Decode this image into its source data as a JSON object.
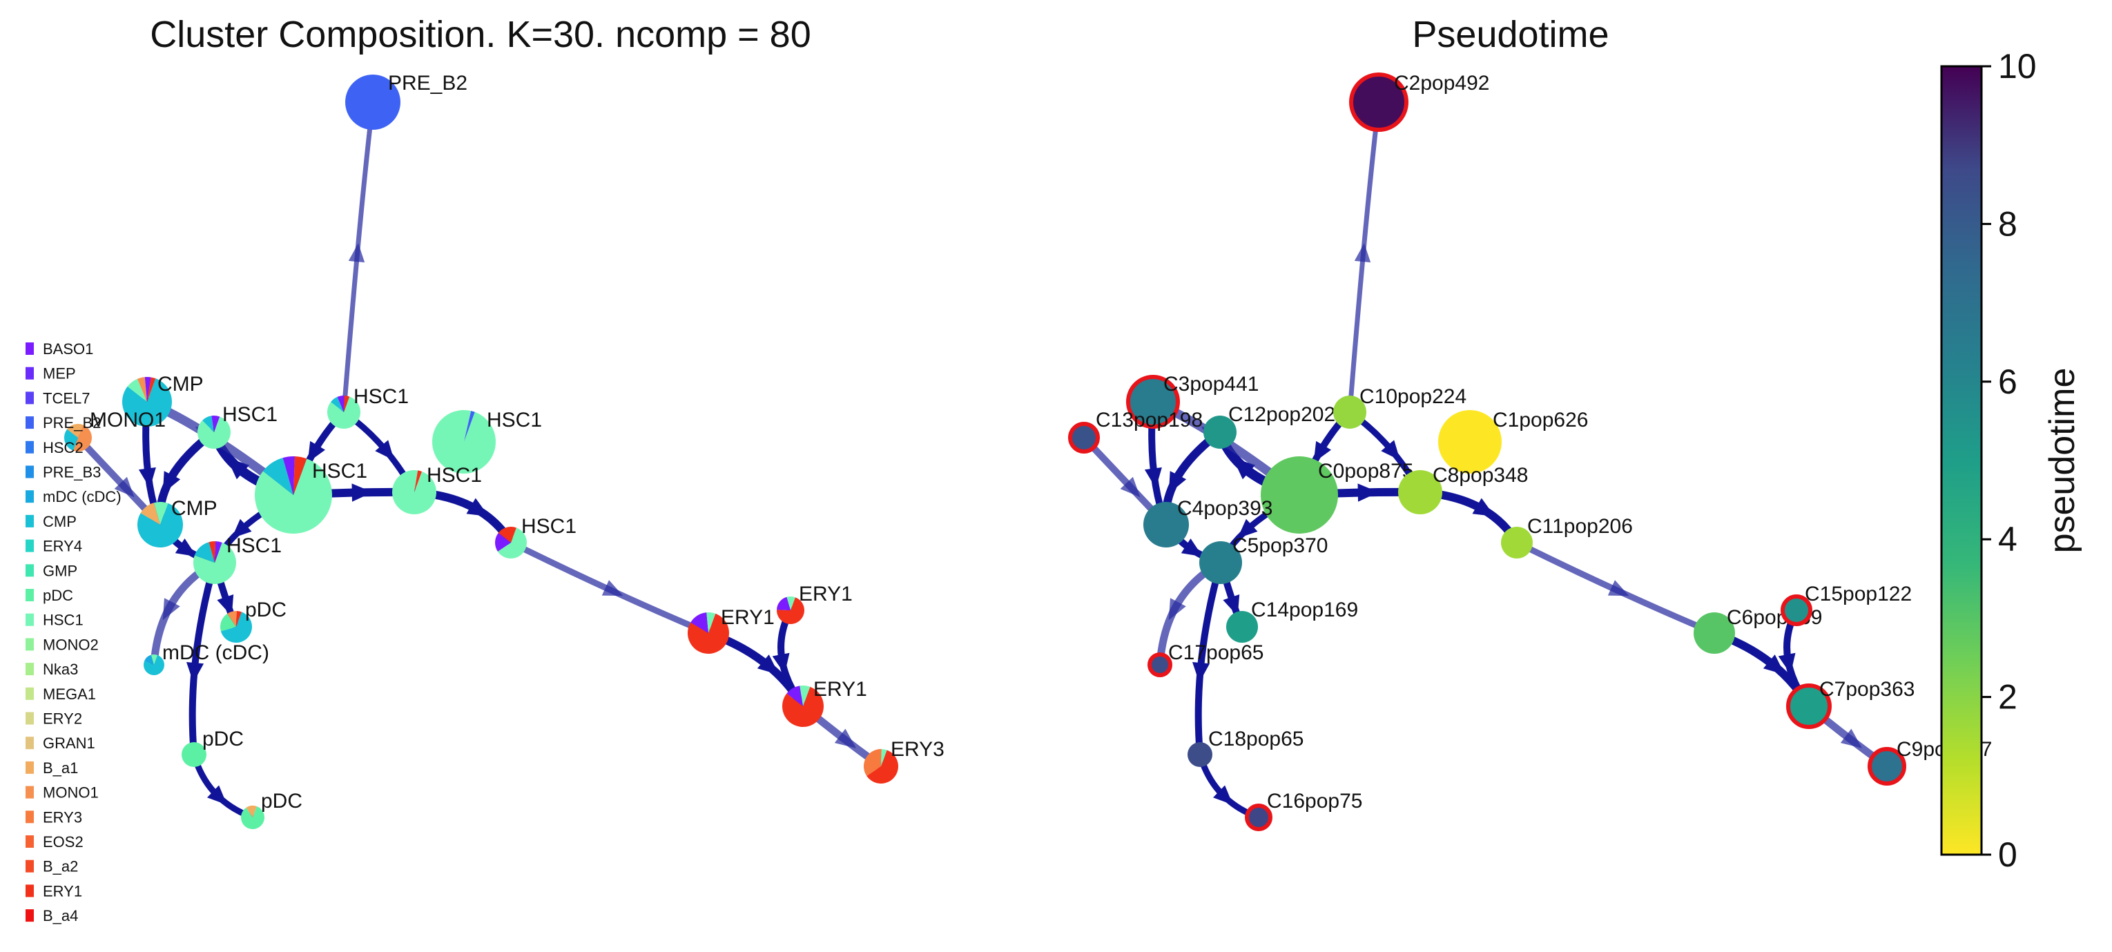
{
  "left_panel": {
    "title": "Cluster Composition. K=30. ncomp = 80",
    "legend": [
      {
        "label": "BASO1",
        "color": "#7b1bff"
      },
      {
        "label": "MEP",
        "color": "#6a2cfb"
      },
      {
        "label": "TCEL7",
        "color": "#5a40f6"
      },
      {
        "label": "PRE_B2",
        "color": "#3e63f4"
      },
      {
        "label": "HSC2",
        "color": "#2f79f0"
      },
      {
        "label": "PRE_B3",
        "color": "#1f8fe8"
      },
      {
        "label": "mDC (cDC)",
        "color": "#17a9df"
      },
      {
        "label": "CMP",
        "color": "#19c0d6"
      },
      {
        "label": "ERY4",
        "color": "#25d6c6"
      },
      {
        "label": "GMP",
        "color": "#3fe6b0"
      },
      {
        "label": "pDC",
        "color": "#5cf0a4"
      },
      {
        "label": "HSC1",
        "color": "#76f6b6"
      },
      {
        "label": "MONO2",
        "color": "#8ff29a"
      },
      {
        "label": "Nka3",
        "color": "#a8ee8c"
      },
      {
        "label": "MEGA1",
        "color": "#c3e68a"
      },
      {
        "label": "ERY2",
        "color": "#d6d789"
      },
      {
        "label": "GRAN1",
        "color": "#e3c47f"
      },
      {
        "label": "B_a1",
        "color": "#f2ac60"
      },
      {
        "label": "MONO1",
        "color": "#f69050"
      },
      {
        "label": "ERY3",
        "color": "#f77a3f"
      },
      {
        "label": "EOS2",
        "color": "#f66232"
      },
      {
        "label": "B_a2",
        "color": "#f44a26"
      },
      {
        "label": "ERY1",
        "color": "#f2311a"
      },
      {
        "label": "B_a4",
        "color": "#f01212"
      }
    ],
    "nodes": [
      {
        "id": "n2",
        "label": "PRE_B2",
        "slices": [
          [
            "#3e63f4",
            1
          ]
        ]
      },
      {
        "id": "n3",
        "label": "CMP",
        "slices": [
          [
            "#19c0d6",
            0.8
          ],
          [
            "#76f6b6",
            0.08
          ],
          [
            "#f69050",
            0.05
          ],
          [
            "#7b1bff",
            0.04
          ],
          [
            "#f2311a",
            0.03
          ]
        ]
      },
      {
        "id": "n13",
        "label": "MONO1",
        "slices": [
          [
            "#f69050",
            0.5
          ],
          [
            "#19c0d6",
            0.3
          ],
          [
            "#f2ac60",
            0.2
          ]
        ]
      },
      {
        "id": "n12",
        "label": "HSC1",
        "slices": [
          [
            "#76f6b6",
            0.82
          ],
          [
            "#19c0d6",
            0.1
          ],
          [
            "#7b1bff",
            0.08
          ]
        ]
      },
      {
        "id": "n10",
        "label": "HSC1",
        "slices": [
          [
            "#76f6b6",
            0.8
          ],
          [
            "#19c0d6",
            0.08
          ],
          [
            "#7b1bff",
            0.07
          ],
          [
            "#f2311a",
            0.05
          ]
        ]
      },
      {
        "id": "n1",
        "label": "HSC1",
        "slices": [
          [
            "#76f6b6",
            0.98
          ],
          [
            "#3e63f4",
            0.02
          ]
        ]
      },
      {
        "id": "n0",
        "label": "HSC1",
        "slices": [
          [
            "#76f6b6",
            0.8
          ],
          [
            "#19c0d6",
            0.1
          ],
          [
            "#7b1bff",
            0.05
          ],
          [
            "#f2311a",
            0.05
          ]
        ]
      },
      {
        "id": "n8",
        "label": "HSC1",
        "slices": [
          [
            "#76f6b6",
            0.97
          ],
          [
            "#f2311a",
            0.03
          ]
        ]
      },
      {
        "id": "n4",
        "label": "CMP",
        "slices": [
          [
            "#19c0d6",
            0.78
          ],
          [
            "#f2ac60",
            0.12
          ],
          [
            "#76f6b6",
            0.1
          ]
        ]
      },
      {
        "id": "n5",
        "label": "HSC1",
        "slices": [
          [
            "#76f6b6",
            0.75
          ],
          [
            "#19c0d6",
            0.15
          ],
          [
            "#f2311a",
            0.05
          ],
          [
            "#7b1bff",
            0.05
          ]
        ]
      },
      {
        "id": "n11",
        "label": "HSC1",
        "slices": [
          [
            "#76f6b6",
            0.6
          ],
          [
            "#7b1bff",
            0.2
          ],
          [
            "#f2311a",
            0.2
          ]
        ]
      },
      {
        "id": "n14",
        "label": "pDC",
        "slices": [
          [
            "#19c0d6",
            0.65
          ],
          [
            "#5cf0a4",
            0.2
          ],
          [
            "#f69050",
            0.1
          ],
          [
            "#f2311a",
            0.05
          ]
        ]
      },
      {
        "id": "n17",
        "label": "mDC (cDC)",
        "slices": [
          [
            "#19c0d6",
            0.75
          ],
          [
            "#17a9df",
            0.15
          ],
          [
            "#76f6b6",
            0.1
          ]
        ]
      },
      {
        "id": "n18",
        "label": "pDC",
        "slices": [
          [
            "#5cf0a4",
            1
          ]
        ]
      },
      {
        "id": "n16",
        "label": "pDC",
        "slices": [
          [
            "#5cf0a4",
            0.85
          ],
          [
            "#f2ac60",
            0.15
          ]
        ]
      },
      {
        "id": "n6",
        "label": "ERY1",
        "slices": [
          [
            "#f2311a",
            0.78
          ],
          [
            "#7b1bff",
            0.15
          ],
          [
            "#76f6b6",
            0.07
          ]
        ]
      },
      {
        "id": "n15",
        "label": "ERY1",
        "slices": [
          [
            "#f2311a",
            0.7
          ],
          [
            "#7b1bff",
            0.2
          ],
          [
            "#76f6b6",
            0.1
          ]
        ]
      },
      {
        "id": "n7",
        "label": "ERY1",
        "slices": [
          [
            "#f2311a",
            0.8
          ],
          [
            "#7b1bff",
            0.12
          ],
          [
            "#76f6b6",
            0.08
          ]
        ]
      },
      {
        "id": "n9",
        "label": "ERY3",
        "slices": [
          [
            "#f2311a",
            0.6
          ],
          [
            "#f77a3f",
            0.35
          ],
          [
            "#76f6b6",
            0.05
          ]
        ]
      }
    ]
  },
  "right_panel": {
    "title": "Pseudotime",
    "colorbar": {
      "label": "pseudotime",
      "min": 0,
      "max": 10,
      "ticks": [
        "0",
        "2",
        "4",
        "6",
        "8",
        "10"
      ]
    },
    "nodes": [
      {
        "id": "n2",
        "label": "C2pop492",
        "pseudotime": 9.8,
        "terminal": true
      },
      {
        "id": "n3",
        "label": "C3pop441",
        "pseudotime": 6.6,
        "terminal": true
      },
      {
        "id": "n13",
        "label": "C13pop198",
        "pseudotime": 8.4,
        "terminal": true
      },
      {
        "id": "n12",
        "label": "C12pop202",
        "pseudotime": 5.3,
        "terminal": false
      },
      {
        "id": "n10",
        "label": "C10pop224",
        "pseudotime": 1.8,
        "terminal": false
      },
      {
        "id": "n1",
        "label": "C1pop626",
        "pseudotime": 0.0,
        "terminal": false
      },
      {
        "id": "n0",
        "label": "C0pop875",
        "pseudotime": 2.8,
        "terminal": false
      },
      {
        "id": "n8",
        "label": "C8pop348",
        "pseudotime": 1.6,
        "terminal": false
      },
      {
        "id": "n4",
        "label": "C4pop393",
        "pseudotime": 6.6,
        "terminal": false
      },
      {
        "id": "n5",
        "label": "C5pop370",
        "pseudotime": 6.4,
        "terminal": false
      },
      {
        "id": "n11",
        "label": "C11pop206",
        "pseudotime": 1.6,
        "terminal": false
      },
      {
        "id": "n14",
        "label": "C14pop169",
        "pseudotime": 5.0,
        "terminal": false
      },
      {
        "id": "n17",
        "label": "C17pop65",
        "pseudotime": 8.6,
        "terminal": true
      },
      {
        "id": "n18",
        "label": "C18pop65",
        "pseudotime": 8.6,
        "terminal": false
      },
      {
        "id": "n16",
        "label": "C16pop75",
        "pseudotime": 8.8,
        "terminal": true
      },
      {
        "id": "n6",
        "label": "C6pop369",
        "pseudotime": 3.0,
        "terminal": false
      },
      {
        "id": "n15",
        "label": "C15pop122",
        "pseudotime": 5.6,
        "terminal": true
      },
      {
        "id": "n7",
        "label": "C7pop363",
        "pseudotime": 5.0,
        "terminal": true
      },
      {
        "id": "n9",
        "label": "C9pop137",
        "pseudotime": 7.0,
        "terminal": true
      }
    ]
  }
}
